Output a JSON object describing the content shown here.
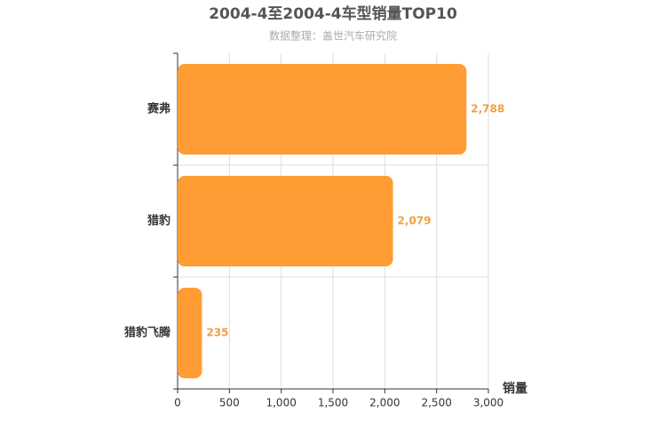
{
  "chart_data": {
    "type": "bar",
    "orientation": "horizontal",
    "title": "2004-4至2004-4车型销量TOP10",
    "subtitle": "数据整理：盖世汽车研究院",
    "x_label": "销量",
    "categories": [
      "赛弗",
      "猎豹",
      "猎豹飞腾"
    ],
    "values": [
      2788,
      2079,
      235
    ],
    "value_labels": [
      "2,788",
      "2,079",
      "235"
    ],
    "color": "#ff9c33",
    "xlim": [
      0,
      3000
    ],
    "xticks": [
      0,
      500,
      {
        "value": 1000,
        "label": "1,000"
      },
      {
        "value": 1500,
        "label": "1,500"
      },
      {
        "value": 2000,
        "label": "2,000"
      },
      {
        "value": 2500,
        "label": "2,500"
      },
      {
        "value": 3000,
        "label": "3,000"
      }
    ],
    "grid": true
  }
}
